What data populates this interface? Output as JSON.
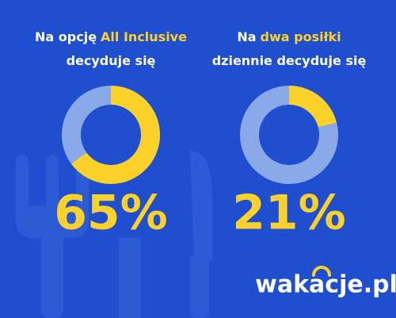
{
  "chart_data": [
    {
      "type": "pie",
      "donut": true,
      "title_lines": [
        [
          {
            "text": "Na opcję"
          },
          {
            "text": "All Inclusive",
            "highlight": true
          }
        ],
        [
          {
            "text": "decyduje się"
          }
        ]
      ],
      "values": [
        65,
        35
      ],
      "colors": [
        "#fcd12a",
        "#8aa9e8"
      ],
      "value_labels": [
        "65%",
        null
      ]
    },
    {
      "type": "pie",
      "donut": true,
      "title_lines": [
        [
          {
            "text": "Na"
          },
          {
            "text": "dwa posiłki",
            "highlight": true
          }
        ],
        [
          {
            "text": "dziennie decyduje się"
          }
        ]
      ],
      "values": [
        21,
        79
      ],
      "colors": [
        "#fcd12a",
        "#8aa9e8"
      ],
      "value_labels": [
        "21%",
        null
      ]
    }
  ],
  "brand": "wakacje.pl"
}
